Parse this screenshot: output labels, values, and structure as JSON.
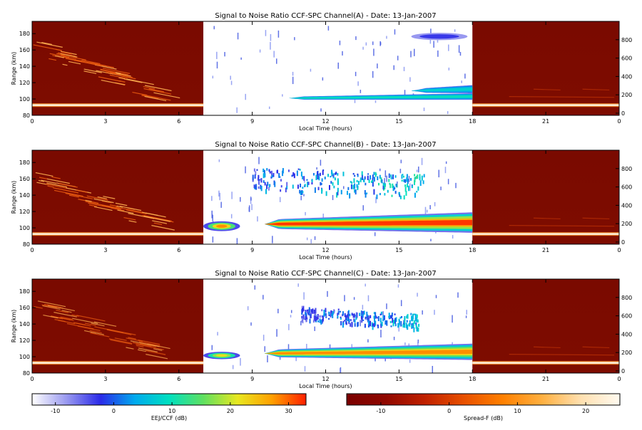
{
  "chart_data": [
    {
      "type": "heatmap",
      "title": "Signal to Noise Ratio CCF-SPC Channel(A) - Date: 13-Jan-2007",
      "xlabel": "Local Time (hours)",
      "ylabel": "Range (km)",
      "xlim": [
        0,
        24
      ],
      "ylim": [
        80,
        195
      ],
      "x_ticks": [
        "0",
        "3",
        "6",
        "9",
        "12",
        "15",
        "18",
        "21",
        "0"
      ],
      "y_ticks": [
        "80",
        "100",
        "120",
        "140",
        "160",
        "180"
      ],
      "y2_ticks": [
        "0",
        "200",
        "400",
        "600",
        "800"
      ],
      "night_windows": [
        [
          0,
          7
        ],
        [
          18,
          24
        ]
      ],
      "features": [
        {
          "kind": "jet",
          "x": [
            10.5,
            18
          ],
          "y": [
            98,
            106
          ],
          "max_db": 10
        },
        {
          "kind": "jet_upper",
          "x": [
            15.5,
            18
          ],
          "y": [
            106,
            116
          ],
          "max_db": 8
        },
        {
          "kind": "patch",
          "x": [
            15.5,
            17.8
          ],
          "y": [
            172,
            181
          ],
          "max_db": 0
        }
      ]
    },
    {
      "type": "heatmap",
      "title": "Signal to Noise Ratio CCF-SPC Channel(B) - Date: 13-Jan-2007",
      "xlabel": "Local Time (hours)",
      "ylabel": "Range (km)",
      "xlim": [
        0,
        24
      ],
      "ylim": [
        80,
        195
      ],
      "x_ticks": [
        "0",
        "3",
        "6",
        "9",
        "12",
        "15",
        "18",
        "21",
        "0"
      ],
      "y_ticks": [
        "80",
        "100",
        "120",
        "140",
        "160",
        "180"
      ],
      "y2_ticks": [
        "0",
        "200",
        "400",
        "600",
        "800"
      ],
      "night_windows": [
        [
          0,
          7
        ],
        [
          18,
          24
        ]
      ],
      "features": [
        {
          "kind": "jet",
          "x": [
            9.5,
            18
          ],
          "y": [
            93,
            118
          ],
          "max_db": 32
        },
        {
          "kind": "jet_early",
          "x": [
            7,
            8.5
          ],
          "y": [
            96,
            108
          ],
          "max_db": 28
        },
        {
          "kind": "echo_150",
          "x": [
            9,
            16
          ],
          "y": [
            135,
            170
          ],
          "max_db": 18
        }
      ]
    },
    {
      "type": "heatmap",
      "title": "Signal to Noise Ratio CCF-SPC Channel(C) - Date: 13-Jan-2007",
      "xlabel": "Local Time (hours)",
      "ylabel": "Range (km)",
      "xlim": [
        0,
        24
      ],
      "ylim": [
        80,
        195
      ],
      "x_ticks": [
        "0",
        "3",
        "6",
        "9",
        "12",
        "15",
        "18",
        "21",
        "0"
      ],
      "y_ticks": [
        "80",
        "100",
        "120",
        "140",
        "160",
        "180"
      ],
      "y2_ticks": [
        "0",
        "200",
        "400",
        "600",
        "800"
      ],
      "night_windows": [
        [
          0,
          7
        ],
        [
          18,
          24
        ]
      ],
      "features": [
        {
          "kind": "jet",
          "x": [
            9.5,
            18
          ],
          "y": [
            95,
            115
          ],
          "max_db": 28
        },
        {
          "kind": "jet_early",
          "x": [
            7,
            8.5
          ],
          "y": [
            97,
            106
          ],
          "max_db": 22
        },
        {
          "kind": "echo_150",
          "x": [
            11,
            15.8
          ],
          "y": [
            140,
            162
          ],
          "max_db": 15
        }
      ]
    }
  ],
  "colorbars": [
    {
      "label": "EEJ/CCF (dB)",
      "range": [
        -14,
        33
      ],
      "ticks": [
        "-10",
        "0",
        "10",
        "20",
        "30"
      ],
      "tick_values": [
        -10,
        0,
        10,
        20,
        30
      ],
      "colors": [
        "#ffffff",
        "#9a9af0",
        "#2a2ae8",
        "#00aaee",
        "#00e0c0",
        "#60e060",
        "#e8e820",
        "#ffa000",
        "#ff2000"
      ]
    },
    {
      "label": "Spread-F (dB)",
      "range": [
        -15,
        25
      ],
      "ticks": [
        "-10",
        "0",
        "10",
        "20"
      ],
      "tick_values": [
        -10,
        0,
        10,
        20
      ],
      "colors": [
        "#7a0000",
        "#900800",
        "#c02000",
        "#e85000",
        "#ff8000",
        "#ffb040",
        "#ffe0b0",
        "#fffaf0"
      ]
    }
  ]
}
